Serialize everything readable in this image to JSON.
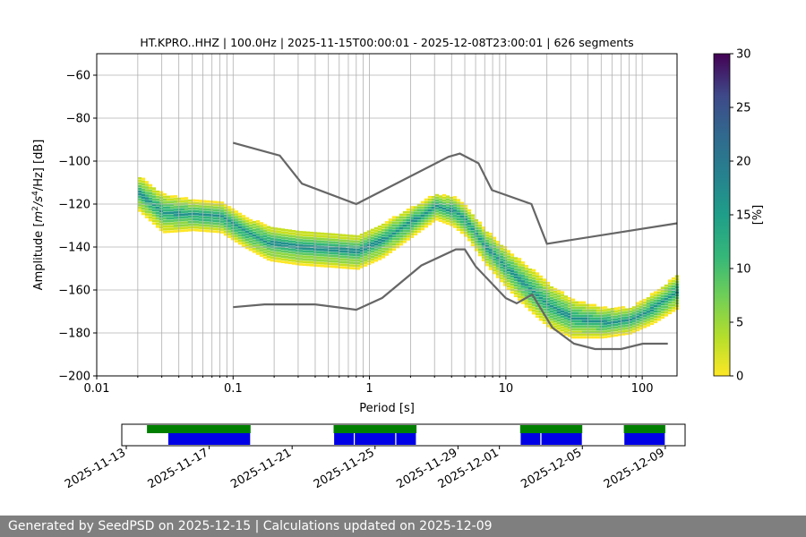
{
  "footer": {
    "text": "Generated by SeedPSD on 2025-12-15 | Calculations updated on 2025-12-09"
  },
  "chart_data": [
    {
      "type": "heatmap",
      "title": "HT.KPRO..HHZ | 100.0Hz | 2025-11-15T00:00:01 - 2025-12-08T23:00:01 | 626 segments",
      "xlabel": "Period [s]",
      "ylabel_parts": {
        "prefix": "Amplitude [",
        "m": "m",
        "exp1": "2",
        "mid": "/s",
        "exp2": "4",
        "suffix": "/Hz] [dB]"
      },
      "x_scale": "log",
      "xlim": [
        0.01,
        180
      ],
      "ylim": [
        -200,
        -50
      ],
      "x_ticks": [
        0.01,
        0.1,
        1,
        10,
        100
      ],
      "x_tick_labels": [
        "0.01",
        "0.1",
        "1",
        "10",
        "100"
      ],
      "y_ticks": [
        -200,
        -180,
        -160,
        -140,
        -120,
        -100,
        -80,
        -60
      ],
      "y_tick_labels": [
        "−200",
        "−180",
        "−160",
        "−140",
        "−120",
        "−100",
        "−80",
        "−60"
      ],
      "grid": true,
      "colorbar": {
        "label": "[%]",
        "range": [
          0,
          30
        ],
        "ticks": [
          0,
          5,
          10,
          15,
          20,
          25,
          30
        ],
        "tick_labels": [
          "0",
          "5",
          "10",
          "15",
          "20",
          "25",
          "30"
        ],
        "colormap": "viridis_r"
      },
      "psd_mode": {
        "period": [
          0.02,
          0.03,
          0.05,
          0.08,
          0.12,
          0.18,
          0.3,
          0.5,
          0.8,
          1.2,
          2,
          3,
          4,
          5,
          7,
          10,
          15,
          20,
          30,
          50,
          80,
          120,
          180
        ],
        "amplitude": [
          -115,
          -124,
          -125,
          -126,
          -133,
          -138,
          -140,
          -141,
          -142,
          -137,
          -128,
          -121,
          -123,
          -128,
          -140,
          -150,
          -160,
          -167,
          -173,
          -175,
          -174,
          -168,
          -160
        ]
      },
      "psd_band_halfwidth_db": [
        8,
        9,
        7,
        7,
        7,
        8,
        8,
        8,
        8,
        8,
        7,
        6,
        7,
        7,
        8,
        9,
        10,
        10,
        9,
        7,
        6,
        7,
        8
      ],
      "noise_models": [
        {
          "name": "NHNM",
          "period": [
            0.1,
            0.22,
            0.32,
            0.8,
            3.8,
            4.6,
            6.3,
            7.9,
            15.4,
            20,
            354.8
          ],
          "amplitude": [
            -91.5,
            -97.4,
            -110.5,
            -120,
            -98,
            -96.5,
            -101,
            -113.5,
            -120,
            -138.5,
            -126
          ]
        },
        {
          "name": "NLNM",
          "period": [
            0.1,
            0.17,
            0.4,
            0.8,
            1.24,
            2.4,
            4.3,
            5,
            6,
            10,
            12,
            15.6,
            21.9,
            31.6,
            45,
            70,
            101,
            154
          ],
          "amplitude": [
            -168,
            -166.7,
            -166.7,
            -169.2,
            -163.7,
            -148.6,
            -141.1,
            -141.1,
            -149,
            -163.8,
            -166.2,
            -162.1,
            -177.5,
            -185,
            -187.5,
            -187.5,
            -185,
            -185
          ]
        }
      ]
    },
    {
      "type": "bar",
      "name": "data-availability",
      "x_tick_labels": [
        "2025-11-13",
        "2025-11-17",
        "2025-11-21",
        "2025-11-25",
        "2025-11-29",
        "2025-12-01",
        "2025-12-05",
        "2025-12-09"
      ],
      "x_tick_dates": [
        "2025-11-13",
        "2025-11-17",
        "2025-11-21",
        "2025-11-25",
        "2025-11-29",
        "2025-12-01",
        "2025-12-05",
        "2025-12-09"
      ],
      "xlim": [
        "2025-11-13",
        "2025-12-10"
      ],
      "data_segments": [
        [
          "2025-11-14",
          "2025-11-19"
        ],
        [
          "2025-11-23",
          "2025-11-27"
        ],
        [
          "2025-12-02",
          "2025-12-05"
        ],
        [
          "2025-12-07",
          "2025-12-09"
        ]
      ],
      "psd_segments": [
        [
          "2025-11-15",
          "2025-11-19"
        ],
        [
          "2025-11-23",
          "2025-11-24"
        ],
        [
          "2025-11-24",
          "2025-11-26"
        ],
        [
          "2025-11-26",
          "2025-11-27"
        ],
        [
          "2025-12-02",
          "2025-12-03"
        ],
        [
          "2025-12-03",
          "2025-12-05"
        ],
        [
          "2025-12-07",
          "2025-12-09"
        ]
      ],
      "colors": {
        "data": "#007f00",
        "psd": "#0000e6"
      }
    }
  ],
  "colors": {
    "noise_model": "#666666",
    "grid": "#b0b0b0"
  }
}
